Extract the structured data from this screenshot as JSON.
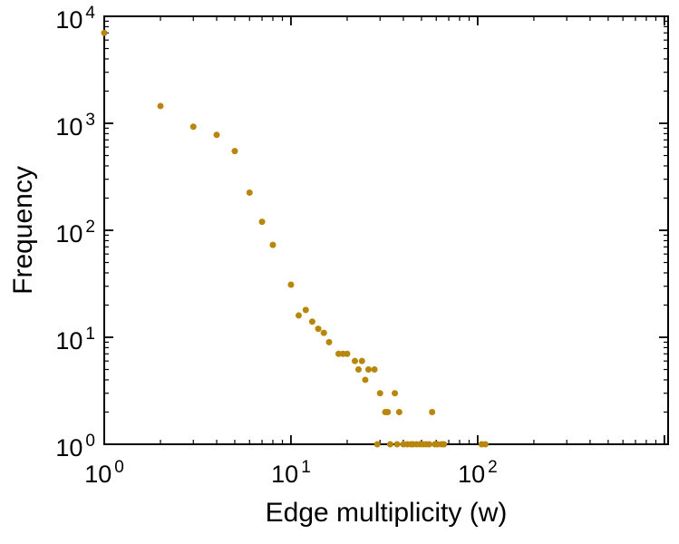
{
  "chart_data": {
    "type": "scatter",
    "title": "",
    "xlabel": "Edge multiplicity (w)",
    "ylabel": "Frequency",
    "x_scale": "log",
    "y_scale": "log",
    "xlim": [
      1,
      1047
    ],
    "ylim": [
      1,
      10000
    ],
    "grid": false,
    "legend": "none",
    "tick_base": "10",
    "x_axis": {
      "min_exp": 0,
      "max_exp": 3.02,
      "tick_exponents": [
        0,
        1,
        2
      ]
    },
    "y_axis": {
      "min_exp": 0,
      "max_exp": 4,
      "tick_exponents": [
        0,
        1,
        2,
        3,
        4
      ]
    },
    "marker": {
      "shape": "circle",
      "color": "#b8860b",
      "radius": 3.5
    },
    "frame_color": "#000000",
    "background": "#ffffff",
    "points": [
      [
        1,
        7000
      ],
      [
        2,
        1450
      ],
      [
        3,
        930
      ],
      [
        4,
        780
      ],
      [
        5,
        550
      ],
      [
        6,
        225
      ],
      [
        7,
        120
      ],
      [
        8,
        73
      ],
      [
        10,
        31
      ],
      [
        11,
        16
      ],
      [
        12,
        18
      ],
      [
        13,
        14
      ],
      [
        14,
        12
      ],
      [
        15,
        11
      ],
      [
        16,
        9
      ],
      [
        18,
        7
      ],
      [
        19,
        7
      ],
      [
        20,
        7
      ],
      [
        22,
        6
      ],
      [
        23,
        5
      ],
      [
        24,
        6
      ],
      [
        25,
        4
      ],
      [
        26,
        5
      ],
      [
        28,
        5
      ],
      [
        30,
        3
      ],
      [
        32,
        2
      ],
      [
        33,
        2
      ],
      [
        36,
        3
      ],
      [
        38,
        2
      ],
      [
        29,
        1
      ],
      [
        34,
        1
      ],
      [
        37,
        1
      ],
      [
        40,
        1
      ],
      [
        42,
        1
      ],
      [
        44,
        1
      ],
      [
        45,
        1
      ],
      [
        47,
        1
      ],
      [
        49,
        1
      ],
      [
        51,
        1
      ],
      [
        53,
        1
      ],
      [
        55,
        1
      ],
      [
        57,
        2
      ],
      [
        59,
        1
      ],
      [
        61,
        1
      ],
      [
        64,
        1
      ],
      [
        66,
        1
      ],
      [
        105,
        1
      ],
      [
        110,
        1
      ]
    ]
  }
}
